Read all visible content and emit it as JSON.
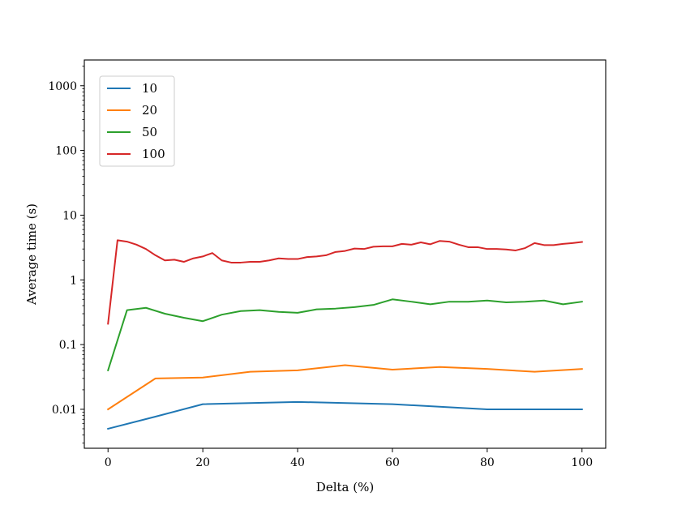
{
  "chart_data": {
    "type": "line",
    "title": "",
    "xlabel": "Delta (%)",
    "ylabel": "Average time (s)",
    "yscale": "log",
    "xlim": [
      -5,
      105
    ],
    "ylim": [
      0.0025,
      2500
    ],
    "xticks": [
      {
        "value": 0,
        "label": "0"
      },
      {
        "value": 20,
        "label": "20"
      },
      {
        "value": 40,
        "label": "40"
      },
      {
        "value": 60,
        "label": "60"
      },
      {
        "value": 80,
        "label": "80"
      },
      {
        "value": 100,
        "label": "100"
      }
    ],
    "yticks": [
      {
        "value": 0.01,
        "label": "0.01"
      },
      {
        "value": 0.1,
        "label": "0.1"
      },
      {
        "value": 1,
        "label": "1"
      },
      {
        "value": 10,
        "label": "10"
      },
      {
        "value": 100,
        "label": "100"
      },
      {
        "value": 1000,
        "label": "1000"
      }
    ],
    "grid": false,
    "legend_position": "top-left",
    "series": [
      {
        "name": "10",
        "color": "#1f77b4",
        "x": [
          0,
          10,
          20,
          40,
          60,
          80,
          100
        ],
        "y": [
          0.005,
          0.0077,
          0.012,
          0.013,
          0.012,
          0.01,
          0.01
        ]
      },
      {
        "name": "20",
        "color": "#ff7f0e",
        "x": [
          0,
          10,
          20,
          30,
          40,
          50,
          60,
          70,
          80,
          90,
          100
        ],
        "y": [
          0.01,
          0.03,
          0.031,
          0.038,
          0.04,
          0.048,
          0.041,
          0.045,
          0.042,
          0.038,
          0.042
        ]
      },
      {
        "name": "50",
        "color": "#2ca02c",
        "x": [
          0,
          4,
          8,
          12,
          16,
          20,
          24,
          28,
          32,
          36,
          40,
          44,
          48,
          52,
          56,
          60,
          64,
          68,
          72,
          76,
          80,
          84,
          88,
          92,
          96,
          100
        ],
        "y": [
          0.04,
          0.34,
          0.37,
          0.3,
          0.26,
          0.23,
          0.29,
          0.33,
          0.34,
          0.32,
          0.31,
          0.35,
          0.36,
          0.38,
          0.41,
          0.5,
          0.46,
          0.42,
          0.46,
          0.46,
          0.48,
          0.45,
          0.46,
          0.48,
          0.42,
          0.46
        ]
      },
      {
        "name": "100",
        "color": "#d62728",
        "x": [
          0,
          2,
          4,
          6,
          8,
          10,
          12,
          14,
          16,
          18,
          20,
          22,
          24,
          26,
          28,
          30,
          32,
          34,
          36,
          38,
          40,
          42,
          44,
          46,
          48,
          50,
          52,
          54,
          56,
          58,
          60,
          62,
          64,
          66,
          68,
          70,
          72,
          74,
          76,
          78,
          80,
          82,
          84,
          86,
          88,
          90,
          92,
          94,
          96,
          98,
          100
        ],
        "y": [
          0.21,
          4.1,
          3.9,
          3.5,
          3.0,
          2.4,
          2.0,
          2.05,
          1.9,
          2.15,
          2.3,
          2.6,
          2.0,
          1.85,
          1.85,
          1.9,
          1.9,
          2.0,
          2.15,
          2.1,
          2.1,
          2.25,
          2.3,
          2.4,
          2.7,
          2.8,
          3.05,
          3.0,
          3.25,
          3.3,
          3.3,
          3.6,
          3.5,
          3.8,
          3.55,
          4.0,
          3.9,
          3.5,
          3.2,
          3.2,
          3.0,
          3.0,
          2.95,
          2.85,
          3.1,
          3.7,
          3.45,
          3.45,
          3.6,
          3.7,
          3.85
        ]
      }
    ]
  }
}
